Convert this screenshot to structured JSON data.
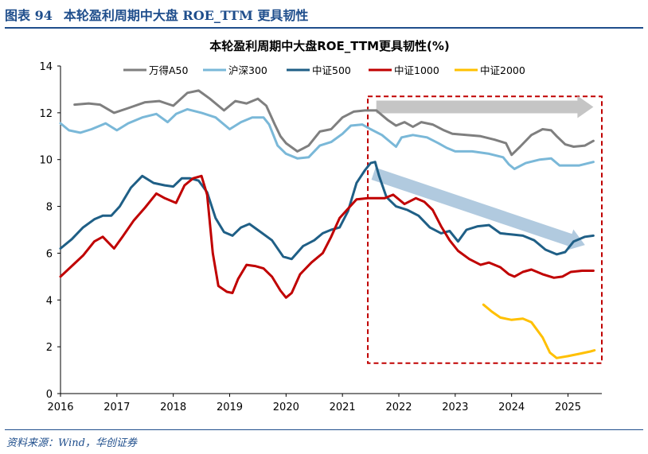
{
  "figure": {
    "number": "图表 94",
    "title": "本轮盈利周期中大盘 ROE_TTM 更具韧性",
    "source": "资料来源：Wind，华创证券"
  },
  "chart_data": {
    "type": "line",
    "title": "本轮盈利周期中大盘ROE_TTM更具韧性(%)",
    "xlabel": "",
    "ylabel": "",
    "xlim": [
      2016,
      2025.6
    ],
    "ylim": [
      0,
      14
    ],
    "x_ticks": [
      "2016",
      "2017",
      "2018",
      "2019",
      "2020",
      "2021",
      "2022",
      "2023",
      "2024",
      "2025"
    ],
    "y_ticks": [
      "0",
      "2",
      "4",
      "6",
      "8",
      "10",
      "12",
      "14"
    ],
    "legend_position": "top-center",
    "series": [
      {
        "name": "万得A50",
        "color": "#7f7f7f",
        "points": [
          [
            2016.25,
            12.35
          ],
          [
            2016.5,
            12.4
          ],
          [
            2016.7,
            12.35
          ],
          [
            2016.95,
            12.0
          ],
          [
            2017.2,
            12.2
          ],
          [
            2017.5,
            12.45
          ],
          [
            2017.75,
            12.5
          ],
          [
            2018.0,
            12.3
          ],
          [
            2018.25,
            12.85
          ],
          [
            2018.45,
            12.95
          ],
          [
            2018.65,
            12.6
          ],
          [
            2018.9,
            12.1
          ],
          [
            2019.1,
            12.5
          ],
          [
            2019.3,
            12.4
          ],
          [
            2019.5,
            12.6
          ],
          [
            2019.65,
            12.3
          ],
          [
            2019.8,
            11.5
          ],
          [
            2019.9,
            11.0
          ],
          [
            2020.0,
            10.7
          ],
          [
            2020.2,
            10.35
          ],
          [
            2020.4,
            10.6
          ],
          [
            2020.6,
            11.2
          ],
          [
            2020.8,
            11.3
          ],
          [
            2021.0,
            11.8
          ],
          [
            2021.2,
            12.05
          ],
          [
            2021.4,
            12.1
          ],
          [
            2021.6,
            12.1
          ],
          [
            2021.8,
            11.7
          ],
          [
            2021.95,
            11.45
          ],
          [
            2022.1,
            11.6
          ],
          [
            2022.25,
            11.4
          ],
          [
            2022.4,
            11.6
          ],
          [
            2022.6,
            11.5
          ],
          [
            2022.8,
            11.25
          ],
          [
            2022.95,
            11.1
          ],
          [
            2023.2,
            11.05
          ],
          [
            2023.45,
            11.0
          ],
          [
            2023.7,
            10.85
          ],
          [
            2023.9,
            10.7
          ],
          [
            2024.0,
            10.2
          ],
          [
            2024.15,
            10.55
          ],
          [
            2024.35,
            11.05
          ],
          [
            2024.55,
            11.3
          ],
          [
            2024.7,
            11.25
          ],
          [
            2024.8,
            11.0
          ],
          [
            2024.95,
            10.65
          ],
          [
            2025.1,
            10.55
          ],
          [
            2025.3,
            10.6
          ],
          [
            2025.45,
            10.8
          ]
        ]
      },
      {
        "name": "沪深300",
        "color": "#7ab8d8",
        "points": [
          [
            2016.0,
            11.55
          ],
          [
            2016.15,
            11.25
          ],
          [
            2016.35,
            11.15
          ],
          [
            2016.55,
            11.3
          ],
          [
            2016.8,
            11.55
          ],
          [
            2017.0,
            11.25
          ],
          [
            2017.2,
            11.55
          ],
          [
            2017.45,
            11.8
          ],
          [
            2017.7,
            11.95
          ],
          [
            2017.9,
            11.6
          ],
          [
            2018.05,
            11.95
          ],
          [
            2018.25,
            12.15
          ],
          [
            2018.5,
            12.0
          ],
          [
            2018.75,
            11.8
          ],
          [
            2019.0,
            11.3
          ],
          [
            2019.2,
            11.6
          ],
          [
            2019.4,
            11.8
          ],
          [
            2019.6,
            11.8
          ],
          [
            2019.7,
            11.5
          ],
          [
            2019.85,
            10.6
          ],
          [
            2020.0,
            10.25
          ],
          [
            2020.2,
            10.05
          ],
          [
            2020.4,
            10.1
          ],
          [
            2020.6,
            10.6
          ],
          [
            2020.8,
            10.75
          ],
          [
            2021.0,
            11.1
          ],
          [
            2021.15,
            11.45
          ],
          [
            2021.35,
            11.5
          ],
          [
            2021.5,
            11.3
          ],
          [
            2021.7,
            11.05
          ],
          [
            2021.85,
            10.75
          ],
          [
            2021.95,
            10.55
          ],
          [
            2022.05,
            10.95
          ],
          [
            2022.25,
            11.05
          ],
          [
            2022.5,
            10.95
          ],
          [
            2022.7,
            10.7
          ],
          [
            2022.85,
            10.5
          ],
          [
            2023.0,
            10.35
          ],
          [
            2023.3,
            10.35
          ],
          [
            2023.6,
            10.25
          ],
          [
            2023.85,
            10.1
          ],
          [
            2023.95,
            9.8
          ],
          [
            2024.05,
            9.6
          ],
          [
            2024.25,
            9.85
          ],
          [
            2024.5,
            10.0
          ],
          [
            2024.7,
            10.05
          ],
          [
            2024.85,
            9.75
          ],
          [
            2025.0,
            9.75
          ],
          [
            2025.2,
            9.75
          ],
          [
            2025.45,
            9.9
          ]
        ]
      },
      {
        "name": "中证500",
        "color": "#1f5f86",
        "points": [
          [
            2016.0,
            6.2
          ],
          [
            2016.2,
            6.6
          ],
          [
            2016.4,
            7.1
          ],
          [
            2016.6,
            7.45
          ],
          [
            2016.75,
            7.6
          ],
          [
            2016.9,
            7.6
          ],
          [
            2017.05,
            8.0
          ],
          [
            2017.25,
            8.8
          ],
          [
            2017.45,
            9.3
          ],
          [
            2017.65,
            9.0
          ],
          [
            2017.85,
            8.9
          ],
          [
            2018.0,
            8.85
          ],
          [
            2018.15,
            9.2
          ],
          [
            2018.3,
            9.2
          ],
          [
            2018.45,
            9.1
          ],
          [
            2018.6,
            8.6
          ],
          [
            2018.75,
            7.5
          ],
          [
            2018.9,
            6.9
          ],
          [
            2019.05,
            6.75
          ],
          [
            2019.2,
            7.1
          ],
          [
            2019.35,
            7.25
          ],
          [
            2019.55,
            6.9
          ],
          [
            2019.75,
            6.55
          ],
          [
            2019.95,
            5.85
          ],
          [
            2020.1,
            5.75
          ],
          [
            2020.3,
            6.3
          ],
          [
            2020.5,
            6.55
          ],
          [
            2020.65,
            6.85
          ],
          [
            2020.8,
            7.0
          ],
          [
            2020.95,
            7.1
          ],
          [
            2021.1,
            7.8
          ],
          [
            2021.25,
            9.0
          ],
          [
            2021.4,
            9.55
          ],
          [
            2021.5,
            9.85
          ],
          [
            2021.58,
            9.9
          ],
          [
            2021.65,
            9.3
          ],
          [
            2021.78,
            8.4
          ],
          [
            2021.95,
            8.0
          ],
          [
            2022.15,
            7.85
          ],
          [
            2022.35,
            7.6
          ],
          [
            2022.55,
            7.1
          ],
          [
            2022.75,
            6.85
          ],
          [
            2022.9,
            6.95
          ],
          [
            2023.05,
            6.5
          ],
          [
            2023.2,
            7.0
          ],
          [
            2023.4,
            7.15
          ],
          [
            2023.6,
            7.2
          ],
          [
            2023.8,
            6.85
          ],
          [
            2024.0,
            6.8
          ],
          [
            2024.2,
            6.75
          ],
          [
            2024.4,
            6.55
          ],
          [
            2024.6,
            6.15
          ],
          [
            2024.8,
            5.95
          ],
          [
            2024.95,
            6.05
          ],
          [
            2025.1,
            6.5
          ],
          [
            2025.3,
            6.7
          ],
          [
            2025.45,
            6.75
          ]
        ]
      },
      {
        "name": "中证1000",
        "color": "#c00000",
        "points": [
          [
            2016.0,
            5.0
          ],
          [
            2016.2,
            5.45
          ],
          [
            2016.4,
            5.9
          ],
          [
            2016.6,
            6.5
          ],
          [
            2016.75,
            6.7
          ],
          [
            2016.95,
            6.2
          ],
          [
            2017.1,
            6.7
          ],
          [
            2017.3,
            7.4
          ],
          [
            2017.5,
            7.95
          ],
          [
            2017.7,
            8.55
          ],
          [
            2017.85,
            8.35
          ],
          [
            2018.05,
            8.15
          ],
          [
            2018.2,
            8.9
          ],
          [
            2018.35,
            9.2
          ],
          [
            2018.5,
            9.3
          ],
          [
            2018.6,
            8.5
          ],
          [
            2018.7,
            6.0
          ],
          [
            2018.8,
            4.6
          ],
          [
            2018.95,
            4.35
          ],
          [
            2019.05,
            4.3
          ],
          [
            2019.15,
            4.9
          ],
          [
            2019.3,
            5.5
          ],
          [
            2019.45,
            5.45
          ],
          [
            2019.6,
            5.35
          ],
          [
            2019.75,
            5.0
          ],
          [
            2019.9,
            4.4
          ],
          [
            2020.0,
            4.1
          ],
          [
            2020.1,
            4.3
          ],
          [
            2020.25,
            5.1
          ],
          [
            2020.45,
            5.6
          ],
          [
            2020.65,
            6.0
          ],
          [
            2020.8,
            6.7
          ],
          [
            2020.95,
            7.5
          ],
          [
            2021.1,
            7.9
          ],
          [
            2021.25,
            8.3
          ],
          [
            2021.45,
            8.35
          ],
          [
            2021.6,
            8.35
          ],
          [
            2021.75,
            8.35
          ],
          [
            2021.9,
            8.5
          ],
          [
            2022.1,
            8.1
          ],
          [
            2022.3,
            8.35
          ],
          [
            2022.45,
            8.2
          ],
          [
            2022.6,
            7.85
          ],
          [
            2022.75,
            7.15
          ],
          [
            2022.9,
            6.55
          ],
          [
            2023.05,
            6.1
          ],
          [
            2023.25,
            5.75
          ],
          [
            2023.45,
            5.5
          ],
          [
            2023.6,
            5.6
          ],
          [
            2023.8,
            5.4
          ],
          [
            2023.95,
            5.1
          ],
          [
            2024.05,
            5.0
          ],
          [
            2024.2,
            5.2
          ],
          [
            2024.35,
            5.3
          ],
          [
            2024.55,
            5.1
          ],
          [
            2024.75,
            4.95
          ],
          [
            2024.9,
            5.0
          ],
          [
            2025.05,
            5.2
          ],
          [
            2025.25,
            5.25
          ],
          [
            2025.45,
            5.25
          ]
        ]
      },
      {
        "name": "中证2000",
        "color": "#ffc000",
        "points": [
          [
            2023.5,
            3.8
          ],
          [
            2023.65,
            3.5
          ],
          [
            2023.8,
            3.25
          ],
          [
            2024.0,
            3.15
          ],
          [
            2024.2,
            3.2
          ],
          [
            2024.35,
            3.05
          ],
          [
            2024.55,
            2.4
          ],
          [
            2024.68,
            1.75
          ],
          [
            2024.8,
            1.52
          ],
          [
            2025.0,
            1.6
          ],
          [
            2025.2,
            1.7
          ],
          [
            2025.4,
            1.8
          ],
          [
            2025.47,
            1.85
          ]
        ]
      }
    ],
    "annotations": [
      {
        "type": "dashed-box",
        "color": "#c00000",
        "x_range": [
          2021.45,
          2025.6
        ],
        "y_range": [
          1.3,
          12.7
        ]
      },
      {
        "type": "arrow",
        "color": "#bfbfbf",
        "from": [
          2021.6,
          12.25
        ],
        "to": [
          2025.45,
          12.25
        ]
      },
      {
        "type": "arrow",
        "color": "#a8c4dc",
        "from": [
          2021.55,
          9.4
        ],
        "to": [
          2025.3,
          6.35
        ]
      }
    ]
  }
}
